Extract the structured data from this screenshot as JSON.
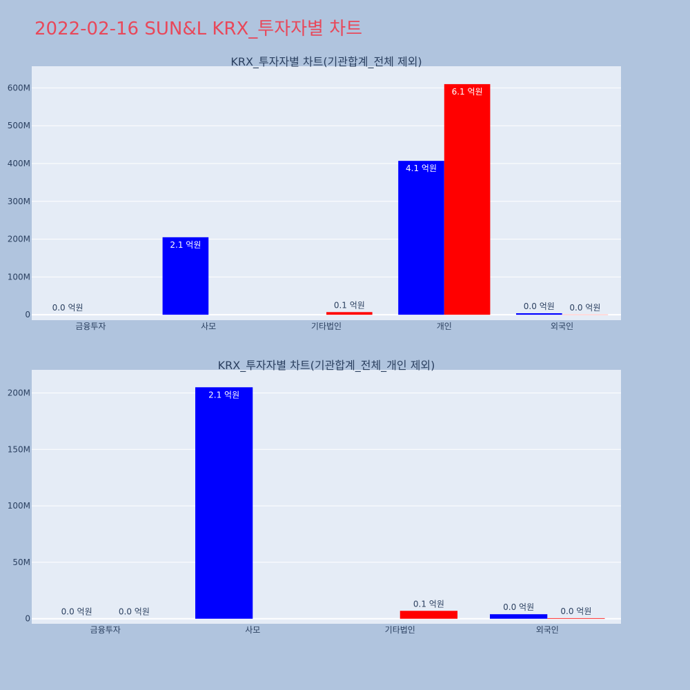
{
  "page": {
    "title": "2022-02-16 SUN&L KRX_투자자별 차트",
    "title_color": "#e8485a",
    "background": "#b0c4de",
    "plot_background": "#e5ecf6"
  },
  "chart_data": [
    {
      "type": "bar",
      "title": "KRX_투자자별 차트(기관합계_전체 제외)",
      "categories": [
        "금융투자",
        "사모",
        "기타법인",
        "개인",
        "외국인"
      ],
      "ylim": [
        -7000000,
        650000000
      ],
      "yticks": [
        {
          "value": 0,
          "label": "0"
        },
        {
          "value": 100000000,
          "label": "100M"
        },
        {
          "value": 200000000,
          "label": "200M"
        },
        {
          "value": 300000000,
          "label": "300M"
        },
        {
          "value": 400000000,
          "label": "400M"
        },
        {
          "value": 500000000,
          "label": "500M"
        },
        {
          "value": 600000000,
          "label": "600M"
        }
      ],
      "series": [
        {
          "color": "#0000ff",
          "values": [
            0,
            205000000,
            null,
            407000000,
            4000000
          ],
          "labels": [
            "0.0 억원",
            "2.1 억원",
            "",
            "4.1 억원",
            "0.0 억원"
          ]
        },
        {
          "color": "#ff0000",
          "values": [
            null,
            null,
            7000000,
            610000000,
            500000
          ],
          "labels": [
            "",
            "",
            "0.1 억원",
            "6.1 억원",
            "0.0 억원"
          ]
        }
      ],
      "grid": true,
      "legend": "none"
    },
    {
      "type": "bar",
      "title": "KRX_투자자별 차트(기관합계_전체_개인 제외)",
      "categories": [
        "금융투자",
        "사모",
        "기타법인",
        "외국인"
      ],
      "ylim": [
        -2000000,
        218000000
      ],
      "yticks": [
        {
          "value": 0,
          "label": "0"
        },
        {
          "value": 50000000,
          "label": "50M"
        },
        {
          "value": 100000000,
          "label": "100M"
        },
        {
          "value": 150000000,
          "label": "150M"
        },
        {
          "value": 200000000,
          "label": "200M"
        }
      ],
      "series": [
        {
          "color": "#0000ff",
          "values": [
            0,
            205000000,
            null,
            4000000
          ],
          "labels": [
            "0.0 억원",
            "2.1 억원",
            "",
            "0.0 억원"
          ]
        },
        {
          "color": "#ff0000",
          "values": [
            0,
            null,
            7000000,
            500000
          ],
          "labels": [
            "0.0 억원",
            "",
            "0.1 억원",
            "0.0 억원"
          ]
        }
      ],
      "grid": true,
      "legend": "none"
    }
  ]
}
